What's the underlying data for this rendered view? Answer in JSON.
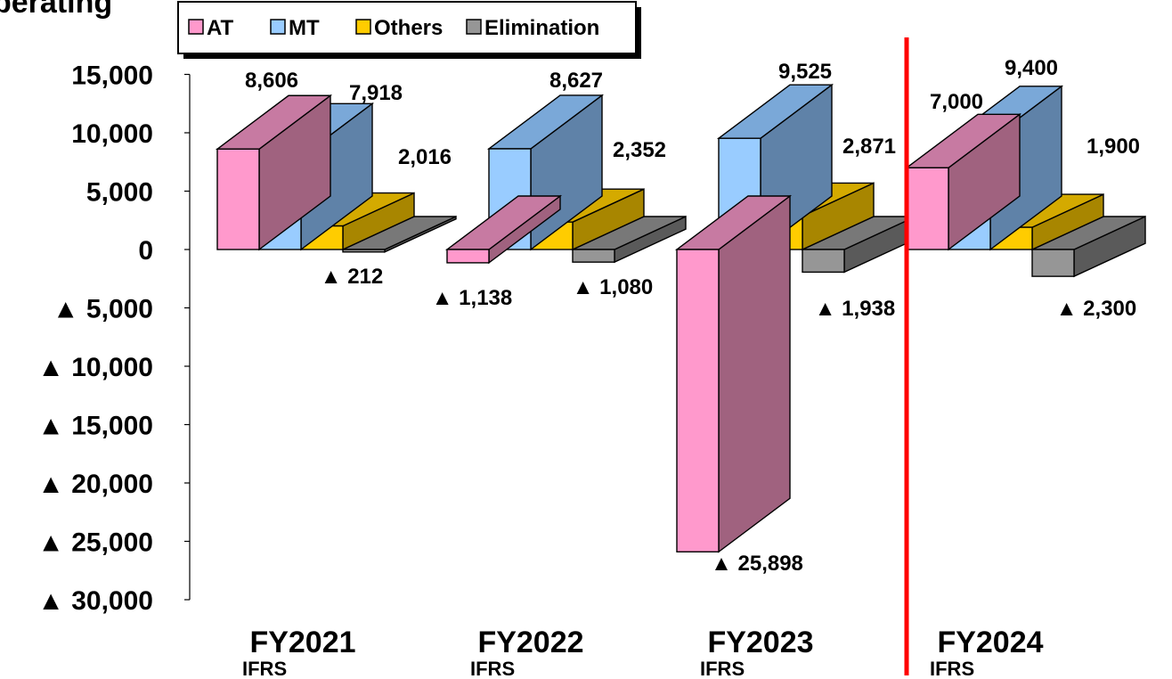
{
  "chart_data": {
    "type": "bar",
    "title": "perating",
    "categories": [
      "FY2021",
      "FY2022",
      "FY2023",
      "FY2024"
    ],
    "category_sublabels": [
      "IFRS",
      "IFRS",
      "IFRS",
      "IFRS"
    ],
    "series": [
      {
        "name": "AT",
        "values": [
          8606,
          -1138,
          -25898,
          7000
        ],
        "colors": {
          "front": "#ff99cc",
          "top": "#c77aa2",
          "side": "#a0627f"
        }
      },
      {
        "name": "MT",
        "values": [
          7918,
          8627,
          9525,
          9400
        ],
        "colors": {
          "front": "#99ccff",
          "top": "#7aa8d8",
          "side": "#5f82a8"
        }
      },
      {
        "name": "Others",
        "values": [
          2016,
          2352,
          2871,
          1900
        ],
        "colors": {
          "front": "#ffcc00",
          "top": "#d4aa00",
          "side": "#a88600"
        }
      },
      {
        "name": "Elimination",
        "values": [
          -212,
          -1080,
          -1938,
          -2300
        ],
        "colors": {
          "front": "#969696",
          "top": "#787878",
          "side": "#5a5a5a"
        }
      }
    ],
    "data_labels": [
      [
        "8,606",
        "7,918",
        "2,016",
        "▲ 212"
      ],
      [
        "▲ 1,138",
        "8,627",
        "2,352",
        "▲ 1,080"
      ],
      [
        "▲ 25,898",
        "9,525",
        "2,871",
        "▲ 1,938"
      ],
      [
        "7,000",
        "9,400",
        "1,900",
        "▲ 2,300"
      ]
    ],
    "ylim": [
      -30000,
      15000
    ],
    "yticks": [
      15000,
      10000,
      5000,
      0,
      -5000,
      -10000,
      -15000,
      -20000,
      -25000,
      -30000
    ],
    "ytick_labels": [
      "15,000",
      "10,000",
      "5,000",
      "0",
      "▲ 5,000",
      "▲ 10,000",
      "▲ 15,000",
      "▲ 20,000",
      "▲ 25,000",
      "▲ 30,000"
    ],
    "grid": false,
    "legend_position": "top-left",
    "divider_before_category": "FY2024",
    "divider_color": "#ff0000"
  }
}
